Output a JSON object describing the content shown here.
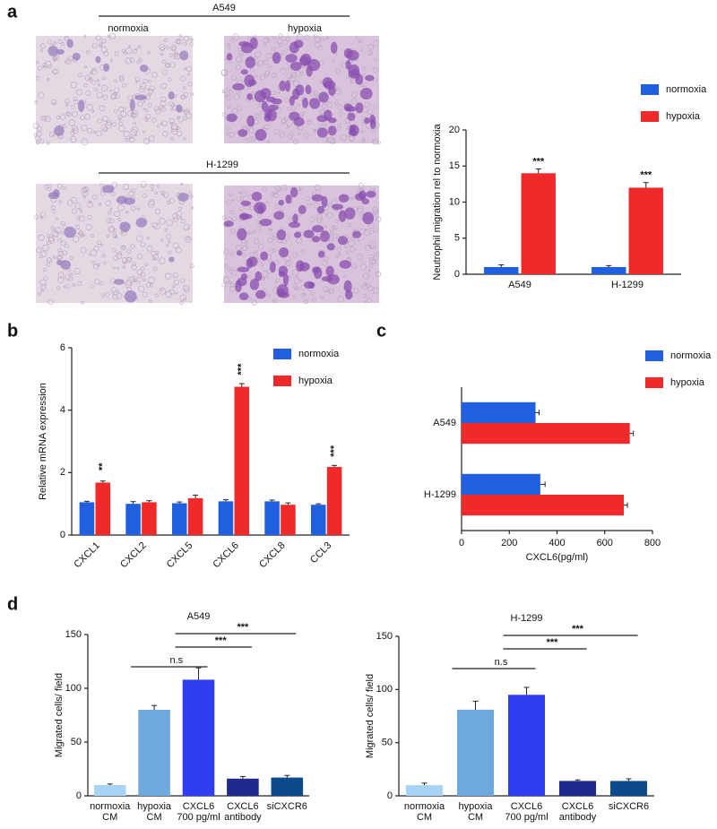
{
  "panel_labels": [
    "a",
    "b",
    "c",
    "d"
  ],
  "images": {
    "top_group": "A549",
    "bottom_group": "H-1299",
    "left_label": "normoxia",
    "right_label": "hypoxia"
  },
  "chart_data": [
    {
      "type": "bar",
      "categories": [
        "A549",
        "H-1299"
      ],
      "series": [
        {
          "name": "normoxia",
          "color": "#1f5fe0",
          "values": [
            1,
            1
          ],
          "errors": [
            0.3,
            0.2
          ]
        },
        {
          "name": "hypoxia",
          "color": "#f02a2a",
          "values": [
            14,
            12
          ],
          "errors": [
            0.6,
            0.7
          ],
          "significance": [
            "***",
            "***"
          ]
        }
      ],
      "y_label": "Neutrophil migration rel to normoxia",
      "ylim": [
        0,
        20
      ],
      "yticks": [
        0,
        5,
        10,
        15,
        20
      ]
    },
    {
      "type": "bar",
      "categories": [
        "CXCL1",
        "CXCL2",
        "CXCL5",
        "CXCL6",
        "CXCL8",
        "CCL3"
      ],
      "series": [
        {
          "name": "normoxia",
          "color": "#1f5fe0",
          "values": [
            1.05,
            1.0,
            1.02,
            1.08,
            1.08,
            0.97
          ],
          "errors": [
            0.03,
            0.07,
            0.04,
            0.05,
            0.04,
            0.03
          ]
        },
        {
          "name": "hypoxia",
          "color": "#f02a2a",
          "values": [
            1.68,
            1.05,
            1.18,
            4.75,
            0.97,
            2.18
          ],
          "errors": [
            0.05,
            0.05,
            0.1,
            0.1,
            0.06,
            0.05
          ],
          "significance": [
            "**",
            null,
            null,
            "***",
            null,
            "***"
          ]
        }
      ],
      "y_label": "Relative mRNA expression",
      "ylim": [
        0,
        6
      ],
      "yticks": [
        0,
        2,
        4,
        6
      ]
    },
    {
      "type": "hbar",
      "categories": [
        "A549",
        "H-1299"
      ],
      "series": [
        {
          "name": "normoxia",
          "color": "#1f5fe0",
          "values": [
            310,
            330
          ],
          "errors": [
            15,
            20
          ]
        },
        {
          "name": "hypoxia",
          "color": "#f02a2a",
          "values": [
            705,
            680
          ],
          "errors": [
            15,
            15
          ]
        }
      ],
      "x_label": "CXCL6(pg/ml)",
      "xlim": [
        0,
        800
      ],
      "xticks": [
        0,
        200,
        400,
        600,
        800
      ]
    },
    {
      "type": "bar",
      "title": "A549",
      "categories": [
        [
          "normoxia",
          "CM"
        ],
        [
          "hypoxia",
          "CM"
        ],
        [
          "CXCL6",
          "700 pg/ml"
        ],
        [
          "CXCL6",
          "antibody"
        ],
        [
          "siCXCR6"
        ]
      ],
      "values": [
        10,
        80,
        108,
        16,
        17
      ],
      "errors": [
        1,
        4,
        11,
        2,
        2
      ],
      "colors": [
        "#a9d3f5",
        "#6fa8dc",
        "#2e3ff0",
        "#1f2a8c",
        "#0d4a8c"
      ],
      "comparisons": [
        {
          "from": 1,
          "to": 2,
          "label": "n.s"
        },
        {
          "from": 2,
          "to": 3,
          "label": "***"
        },
        {
          "from": 2,
          "to": 4,
          "label": "***"
        }
      ],
      "y_label": "Migrated cells/ field",
      "ylim": [
        0,
        150
      ],
      "yticks": [
        0,
        50,
        100,
        150
      ]
    },
    {
      "type": "bar",
      "title": "H-1299",
      "categories": [
        [
          "normoxia",
          "CM"
        ],
        [
          "hypoxia",
          "CM"
        ],
        [
          "CXCL6",
          "700 pg/ml"
        ],
        [
          "CXCL6",
          "antibody"
        ],
        [
          "siCXCR6"
        ]
      ],
      "values": [
        10,
        81,
        95,
        14,
        14
      ],
      "errors": [
        2,
        8,
        7,
        1,
        2
      ],
      "colors": [
        "#a9d3f5",
        "#6fa8dc",
        "#2e3ff0",
        "#1f2a8c",
        "#0d4a8c"
      ],
      "comparisons": [
        {
          "from": 1,
          "to": 2,
          "label": "n.s"
        },
        {
          "from": 2,
          "to": 3,
          "label": "***"
        },
        {
          "from": 2,
          "to": 4,
          "label": "***"
        }
      ],
      "y_label": "Migrated cells/ field",
      "ylim": [
        0,
        150
      ],
      "yticks": [
        0,
        50,
        100,
        150
      ]
    }
  ]
}
